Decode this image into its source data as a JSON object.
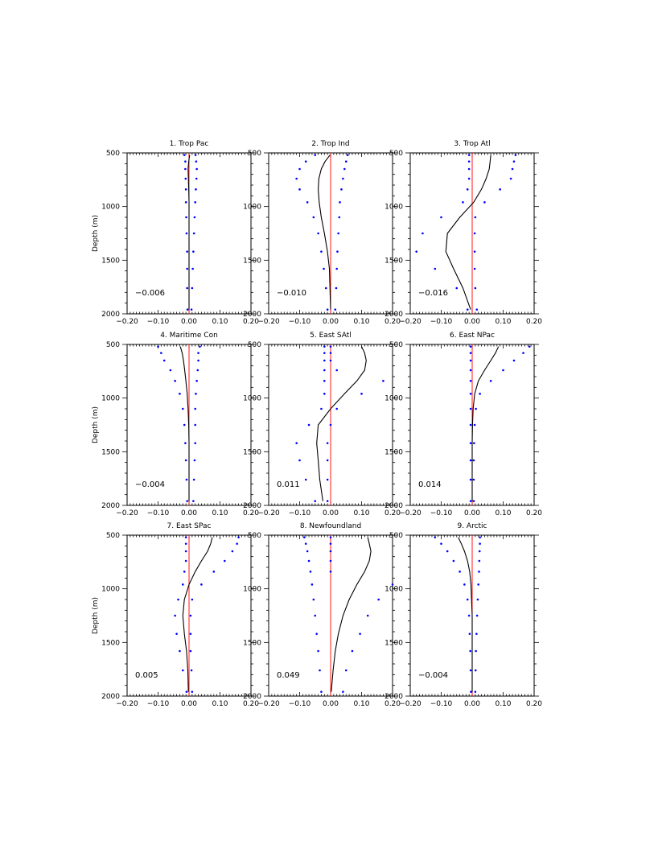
{
  "chart_data": [
    {
      "type": "line",
      "title": "1. Trop Pac",
      "ylabel": "Depth (m)",
      "annotation": "−0.006",
      "xlim": [
        -0.2,
        0.2
      ],
      "ylim": [
        2000,
        500
      ],
      "xticks": [
        "−0.20",
        "−0.10",
        "0.00",
        "0.10",
        "0.20"
      ],
      "yticks": [
        "500",
        "1000",
        "1500",
        "2000"
      ],
      "depth": [
        520,
        580,
        650,
        740,
        840,
        960,
        1100,
        1250,
        1420,
        1580,
        1760,
        1960
      ],
      "mean": [
        0.002,
        -0.001,
        -0.003,
        -0.002,
        -0.001,
        0.0,
        0.0,
        0.0,
        0.0,
        0.0,
        0.0,
        0.0
      ],
      "lower": [
        -0.015,
        -0.012,
        -0.012,
        -0.011,
        -0.01,
        -0.01,
        -0.009,
        -0.008,
        -0.006,
        -0.006,
        -0.006,
        -0.005
      ],
      "upper": [
        0.021,
        0.023,
        0.025,
        0.024,
        0.022,
        0.02,
        0.018,
        0.016,
        0.014,
        0.012,
        0.01,
        0.008
      ]
    },
    {
      "type": "line",
      "title": "2. Trop Ind",
      "ylabel": "",
      "annotation": "−0.010",
      "xlim": [
        -0.2,
        0.2
      ],
      "ylim": [
        2000,
        500
      ],
      "xticks": [
        "−0.20",
        "−0.10",
        "0.00",
        "0.10",
        "0.20"
      ],
      "yticks": [
        "500",
        "1000",
        "1500",
        "2000"
      ],
      "depth": [
        520,
        580,
        650,
        740,
        840,
        960,
        1100,
        1250,
        1420,
        1580,
        1760,
        1960
      ],
      "mean": [
        -0.002,
        -0.018,
        -0.03,
        -0.038,
        -0.04,
        -0.037,
        -0.03,
        -0.02,
        -0.01,
        -0.004,
        -0.002,
        0.0
      ],
      "lower": [
        -0.05,
        -0.08,
        -0.1,
        -0.11,
        -0.1,
        -0.075,
        -0.055,
        -0.04,
        -0.03,
        -0.022,
        -0.015,
        -0.01
      ],
      "upper": [
        0.055,
        0.05,
        0.045,
        0.04,
        0.035,
        0.03,
        0.028,
        0.025,
        0.022,
        0.02,
        0.018,
        0.015
      ]
    },
    {
      "type": "line",
      "title": "3. Trop Atl",
      "ylabel": "",
      "annotation": "−0.016",
      "xlim": [
        -0.2,
        0.2
      ],
      "ylim": [
        2000,
        500
      ],
      "xticks": [
        "−0.20",
        "−0.10",
        "0.00",
        "0.10",
        "0.20"
      ],
      "yticks": [
        "500",
        "1000",
        "1500",
        "2000"
      ],
      "depth": [
        520,
        580,
        650,
        740,
        840,
        960,
        1100,
        1250,
        1420,
        1580,
        1760,
        1960
      ],
      "mean": [
        0.06,
        0.058,
        0.055,
        0.045,
        0.03,
        0.005,
        -0.04,
        -0.08,
        -0.085,
        -0.06,
        -0.03,
        -0.005
      ],
      "lower": [
        -0.01,
        -0.01,
        -0.01,
        -0.01,
        -0.015,
        -0.03,
        -0.1,
        -0.16,
        -0.18,
        -0.12,
        -0.05,
        -0.015
      ],
      "upper": [
        0.14,
        0.135,
        0.13,
        0.125,
        0.09,
        0.04,
        0.01,
        0.008,
        0.008,
        0.008,
        0.01,
        0.015
      ]
    },
    {
      "type": "line",
      "title": "4. Maritime Con",
      "ylabel": "Depth (m)",
      "annotation": "−0.004",
      "xlim": [
        -0.2,
        0.2
      ],
      "ylim": [
        2000,
        500
      ],
      "xticks": [
        "−0.20",
        "−0.10",
        "0.00",
        "0.10",
        "0.20"
      ],
      "yticks": [
        "500",
        "1000",
        "1500",
        "2000"
      ],
      "depth": [
        520,
        580,
        650,
        740,
        840,
        960,
        1100,
        1250,
        1420,
        1580,
        1760,
        1960
      ],
      "mean": [
        -0.028,
        -0.022,
        -0.018,
        -0.014,
        -0.01,
        -0.006,
        -0.003,
        -0.001,
        0.0,
        0.0,
        0.0,
        0.0
      ],
      "lower": [
        -0.1,
        -0.09,
        -0.08,
        -0.06,
        -0.045,
        -0.03,
        -0.02,
        -0.015,
        -0.012,
        -0.01,
        -0.008,
        -0.006
      ],
      "upper": [
        0.035,
        0.03,
        0.03,
        0.028,
        0.025,
        0.022,
        0.02,
        0.02,
        0.02,
        0.018,
        0.016,
        0.014
      ]
    },
    {
      "type": "line",
      "title": "5. East SAtl",
      "ylabel": "",
      "annotation": "0.011",
      "xlim": [
        -0.2,
        0.2
      ],
      "ylim": [
        2000,
        500
      ],
      "xticks": [
        "−0.20",
        "−0.10",
        "0.00",
        "0.10",
        "0.20"
      ],
      "yticks": [
        "500",
        "1000",
        "1500",
        "2000"
      ],
      "depth": [
        520,
        580,
        650,
        740,
        840,
        960,
        1100,
        1250,
        1420,
        1580,
        1760,
        1960
      ],
      "mean": [
        0.1,
        0.11,
        0.115,
        0.11,
        0.085,
        0.045,
        0.0,
        -0.04,
        -0.045,
        -0.04,
        -0.035,
        -0.025
      ],
      "lower": [
        -0.02,
        -0.02,
        -0.02,
        -0.02,
        -0.02,
        -0.02,
        -0.03,
        -0.07,
        -0.11,
        -0.1,
        -0.08,
        -0.05
      ],
      "upper": [
        0.0,
        0.0,
        0.0,
        0.02,
        0.17,
        0.1,
        0.02,
        0.0,
        -0.01,
        -0.01,
        -0.01,
        -0.01
      ]
    },
    {
      "type": "line",
      "title": "6. East NPac",
      "ylabel": "",
      "annotation": "0.014",
      "xlim": [
        -0.2,
        0.2
      ],
      "ylim": [
        2000,
        500
      ],
      "xticks": [
        "−0.20",
        "−0.10",
        "0.00",
        "0.10",
        "0.20"
      ],
      "yticks": [
        "500",
        "1000",
        "1500",
        "2000"
      ],
      "depth": [
        520,
        580,
        650,
        740,
        840,
        960,
        1100,
        1250,
        1420,
        1580,
        1760,
        1960
      ],
      "mean": [
        0.085,
        0.075,
        0.06,
        0.04,
        0.02,
        0.008,
        0.003,
        0.001,
        0.0,
        0.0,
        0.0,
        0.0
      ],
      "lower": [
        -0.005,
        -0.005,
        -0.005,
        -0.005,
        -0.005,
        -0.005,
        -0.005,
        -0.005,
        -0.005,
        -0.005,
        -0.005,
        -0.005
      ],
      "upper": [
        0.185,
        0.165,
        0.135,
        0.1,
        0.06,
        0.025,
        0.012,
        0.008,
        0.006,
        0.005,
        0.005,
        0.005
      ]
    },
    {
      "type": "line",
      "title": "7. East SPac",
      "ylabel": "Depth (m)",
      "annotation": "0.005",
      "xlim": [
        -0.2,
        0.2
      ],
      "ylim": [
        2000,
        500
      ],
      "xticks": [
        "−0.20",
        "−0.10",
        "0.00",
        "0.10",
        "0.20"
      ],
      "yticks": [
        "500",
        "1000",
        "1500",
        "2000"
      ],
      "depth": [
        520,
        580,
        650,
        740,
        840,
        960,
        1100,
        1250,
        1420,
        1580,
        1760,
        1960
      ],
      "mean": [
        0.075,
        0.07,
        0.06,
        0.04,
        0.02,
        0.0,
        -0.015,
        -0.02,
        -0.015,
        -0.008,
        -0.004,
        -0.002
      ],
      "lower": [
        -0.01,
        -0.01,
        -0.01,
        -0.01,
        -0.015,
        -0.02,
        -0.035,
        -0.045,
        -0.04,
        -0.03,
        -0.02,
        -0.008
      ],
      "upper": [
        0.16,
        0.155,
        0.14,
        0.115,
        0.08,
        0.04,
        0.01,
        0.005,
        0.005,
        0.005,
        0.008,
        0.01
      ]
    },
    {
      "type": "line",
      "title": "8. Newfoundland",
      "ylabel": "",
      "annotation": "0.049",
      "xlim": [
        -0.2,
        0.2
      ],
      "ylim": [
        2000,
        500
      ],
      "xticks": [
        "−0.20",
        "−0.10",
        "0.00",
        "0.10",
        "0.20"
      ],
      "yticks": [
        "500",
        "1000",
        "1500",
        "2000"
      ],
      "depth": [
        520,
        580,
        650,
        740,
        840,
        960,
        1100,
        1250,
        1420,
        1580,
        1760,
        1960
      ],
      "mean": [
        0.12,
        0.125,
        0.13,
        0.125,
        0.11,
        0.085,
        0.06,
        0.04,
        0.025,
        0.015,
        0.008,
        0.002
      ],
      "lower": [
        -0.085,
        -0.08,
        -0.075,
        -0.07,
        -0.065,
        -0.06,
        -0.055,
        -0.05,
        -0.045,
        -0.04,
        -0.035,
        -0.03
      ],
      "upper": [
        0.0,
        0.0,
        0.0,
        0.0,
        0.0,
        0.2,
        0.155,
        0.12,
        0.095,
        0.07,
        0.05,
        0.04
      ]
    },
    {
      "type": "line",
      "title": "9. Arctic",
      "ylabel": "",
      "annotation": "−0.004",
      "xlim": [
        -0.2,
        0.2
      ],
      "ylim": [
        2000,
        500
      ],
      "xticks": [
        "−0.20",
        "−0.10",
        "0.00",
        "0.10",
        "0.20"
      ],
      "yticks": [
        "500",
        "1000",
        "1500",
        "2000"
      ],
      "depth": [
        520,
        580,
        650,
        740,
        840,
        960,
        1100,
        1250,
        1420,
        1580,
        1760,
        1960
      ],
      "mean": [
        -0.045,
        -0.035,
        -0.025,
        -0.015,
        -0.008,
        -0.004,
        -0.002,
        0.0,
        0.0,
        0.0,
        0.0,
        0.0
      ],
      "lower": [
        -0.12,
        -0.1,
        -0.08,
        -0.06,
        -0.04,
        -0.025,
        -0.015,
        -0.01,
        -0.008,
        -0.006,
        -0.005,
        -0.004
      ],
      "upper": [
        0.025,
        0.025,
        0.024,
        0.023,
        0.022,
        0.02,
        0.018,
        0.016,
        0.014,
        0.012,
        0.011,
        0.01
      ]
    }
  ],
  "colors": {
    "mean_line": "#000000",
    "bounds": "#0000ff",
    "zero_line": "#ff0000",
    "axes": "#000000"
  }
}
